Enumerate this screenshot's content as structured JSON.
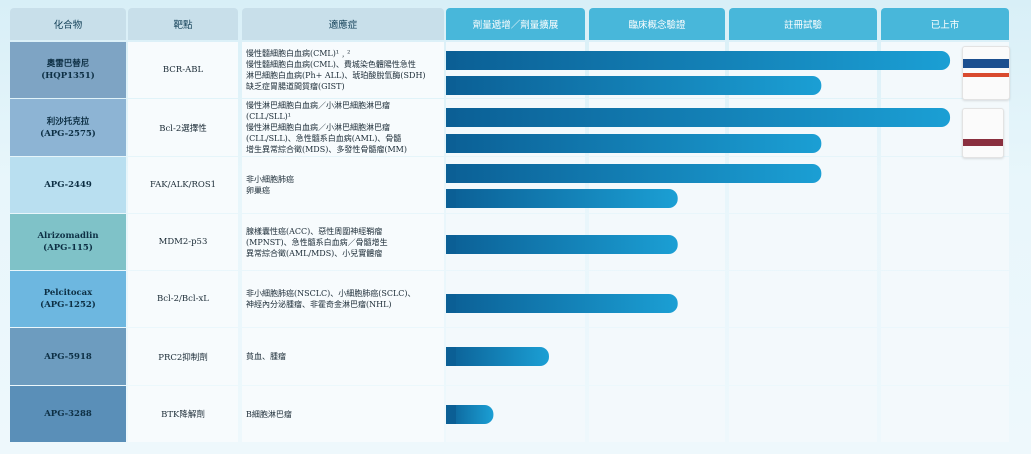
{
  "headers": {
    "compound": "化合物",
    "target": "靶點",
    "indication": "適應症",
    "dose": "劑量遞增／劑量擴展",
    "poc": "臨床概念驗證",
    "registration": "註冊試驗",
    "market": "已上市"
  },
  "rows": [
    {
      "compound": "奧雷巴替尼\n(HQP1351)",
      "target": "BCR-ABL",
      "indication": "慢性髓細胞白血病(CML)¹﹐²\n慢性髓細胞白血病(CML)、費城染色體陽性急性\n淋巴細胞白血病(Ph+ ALL)、琥珀酸脫氫酶(SDH)\n缺乏症胃腸道間質瘤(GIST)"
    },
    {
      "compound": "利沙托克拉\n(APG-2575)",
      "target": "Bcl-2選擇性",
      "indication": "慢性淋巴細胞白血病／小淋巴細胞淋巴瘤\n(CLL/SLL)¹\n慢性淋巴細胞白血病／小淋巴細胞淋巴瘤\n(CLL/SLL)、急性髓系白血病(AML)、骨髓\n增生異常綜合徵(MDS)、多發性骨髓瘤(MM)"
    },
    {
      "compound": "APG-2449",
      "target": "FAK/ALK/ROS1",
      "indication": "非小細胞肺癌\n卵巢癌"
    },
    {
      "compound": "Alrizomadlin\n(APG-115)",
      "target": "MDM2-p53",
      "indication": "腺樣囊性癌(ACC)、惡性周圍神經鞘瘤\n(MPNST)、急性髓系白血病／骨髓增生\n異常綜合徵(AML/MDS)、小兒實體瘤"
    },
    {
      "compound": "Pelcitocax\n(APG-1252)",
      "target": "Bcl-2/Bcl-xL",
      "indication": "非小細胞肺癌(NSCLC)、小細胞肺癌(SCLC)、\n神經內分泌腫瘤、非霍奇金淋巴瘤(NHL)"
    },
    {
      "compound": "APG-5918",
      "target": "PRC2抑制劑",
      "indication": "貧血、腫瘤"
    },
    {
      "compound": "APG-3288",
      "target": "BTK降解劑",
      "indication": "B細胞淋巴瘤"
    }
  ],
  "chart_data": {
    "type": "bar",
    "orientation": "horizontal",
    "stages": [
      "劑量遞增／劑量擴展",
      "臨床概念驗證",
      "註冊試驗",
      "已上市"
    ],
    "bars": [
      {
        "compound": "奧雷巴替尼",
        "value": 3.72
      },
      {
        "compound": "奧雷巴替尼",
        "value": 2.77
      },
      {
        "compound": "利沙托克拉",
        "value": 3.72
      },
      {
        "compound": "利沙托克拉",
        "value": 2.77
      },
      {
        "compound": "APG-2449",
        "value": 2.77
      },
      {
        "compound": "APG-2449",
        "value": 1.71
      },
      {
        "compound": "Alrizomadlin",
        "value": 1.71
      },
      {
        "compound": "Pelcitocax",
        "value": 1.71
      },
      {
        "compound": "APG-5918",
        "value": 0.76
      },
      {
        "compound": "APG-3288",
        "value": 0.35
      }
    ],
    "colors": {
      "bar_start": "#0b5f95",
      "bar_end": "#1b9fd4",
      "header_accent": "#48b7da"
    }
  }
}
